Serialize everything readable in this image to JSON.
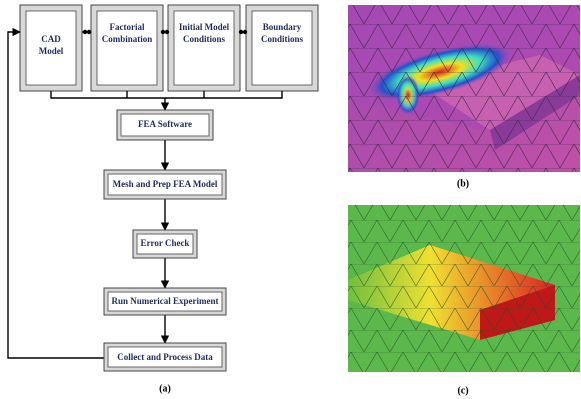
{
  "flowchart": {
    "inputs": [
      {
        "lines": [
          "CAD",
          "Model"
        ]
      },
      {
        "lines": [
          "Factorial",
          "Combination"
        ]
      },
      {
        "lines": [
          "Initial Model",
          "Conditions"
        ]
      },
      {
        "lines": [
          "Boundary",
          "Conditions"
        ]
      }
    ],
    "steps": [
      "FEA Software",
      "Mesh and Prep FEA Model",
      "Error Check",
      "Run Numerical Experiment",
      "Collect and Process Data"
    ],
    "caption": "(a)"
  },
  "images": {
    "b": {
      "caption": "(b)"
    },
    "c": {
      "caption": "(c)"
    }
  }
}
